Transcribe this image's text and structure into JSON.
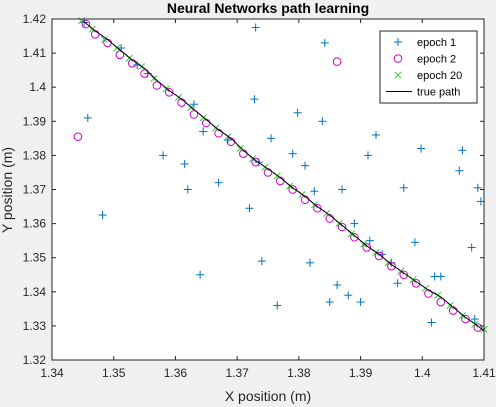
{
  "chart_data": {
    "type": "scatter",
    "title": "Neural Networks path learning",
    "xlabel": "X position (m)",
    "ylabel": "Y position (m)",
    "xlim": [
      1.34,
      1.41
    ],
    "ylim": [
      1.32,
      1.42
    ],
    "xticks": [
      "1.34",
      "1.35",
      "1.36",
      "1.37",
      "1.38",
      "1.39",
      "1.4",
      "1.41"
    ],
    "yticks": [
      "1.32",
      "1.33",
      "1.34",
      "1.35",
      "1.36",
      "1.37",
      "1.38",
      "1.39",
      "1.4",
      "1.41",
      "1.42"
    ],
    "xtick_values": [
      1.34,
      1.35,
      1.36,
      1.37,
      1.38,
      1.39,
      1.4,
      1.41
    ],
    "ytick_values": [
      1.32,
      1.33,
      1.34,
      1.35,
      1.36,
      1.37,
      1.38,
      1.39,
      1.4,
      1.41,
      1.42
    ],
    "legend_position": "top-right",
    "grid": false,
    "true_path": {
      "name": "true path",
      "color": "#000000",
      "x": [
        1.345,
        1.347,
        1.349,
        1.351,
        1.353,
        1.355,
        1.357,
        1.359,
        1.361,
        1.363,
        1.365,
        1.367,
        1.369,
        1.371,
        1.373,
        1.375,
        1.377,
        1.379,
        1.381,
        1.383,
        1.385,
        1.387,
        1.389,
        1.391,
        1.393,
        1.395,
        1.397,
        1.399,
        1.401,
        1.403,
        1.405,
        1.407,
        1.409,
        1.41
      ],
      "y": [
        1.4195,
        1.4165,
        1.414,
        1.411,
        1.408,
        1.4055,
        1.402,
        1.399,
        1.3965,
        1.3935,
        1.3905,
        1.3875,
        1.385,
        1.3815,
        1.3785,
        1.376,
        1.3735,
        1.3705,
        1.368,
        1.365,
        1.3625,
        1.3595,
        1.3565,
        1.3535,
        1.351,
        1.348,
        1.3455,
        1.343,
        1.3405,
        1.3385,
        1.3355,
        1.3325,
        1.33,
        1.3285
      ]
    },
    "series": [
      {
        "name": "epoch 1",
        "marker": "plus",
        "color": "#0072BD",
        "x": [
          1.3452,
          1.3458,
          1.3482,
          1.3512,
          1.3538,
          1.3555,
          1.358,
          1.3615,
          1.362,
          1.363,
          1.364,
          1.3645,
          1.367,
          1.3685,
          1.372,
          1.373,
          1.3728,
          1.3735,
          1.374,
          1.3755,
          1.3765,
          1.379,
          1.3798,
          1.381,
          1.3818,
          1.3825,
          1.3838,
          1.3842,
          1.385,
          1.3862,
          1.387,
          1.388,
          1.389,
          1.39,
          1.3912,
          1.3915,
          1.3925,
          1.3935,
          1.395,
          1.396,
          1.397,
          1.3988,
          1.3998,
          1.4015,
          1.402,
          1.403,
          1.406,
          1.4065,
          1.408,
          1.4085,
          1.409,
          1.4095
        ],
        "y": [
          1.419,
          1.391,
          1.3625,
          1.4115,
          1.4065,
          1.404,
          1.38,
          1.3775,
          1.37,
          1.395,
          1.345,
          1.387,
          1.372,
          1.3845,
          1.3645,
          1.4175,
          1.3965,
          1.378,
          1.349,
          1.385,
          1.336,
          1.3805,
          1.3925,
          1.377,
          1.3485,
          1.3695,
          1.39,
          1.413,
          1.337,
          1.342,
          1.37,
          1.339,
          1.36,
          1.337,
          1.38,
          1.355,
          1.386,
          1.351,
          1.3485,
          1.3425,
          1.3705,
          1.3545,
          1.382,
          1.331,
          1.3445,
          1.3445,
          1.3755,
          1.3815,
          1.353,
          1.332,
          1.3705,
          1.3665
        ]
      },
      {
        "name": "epoch 2",
        "marker": "circle",
        "color": "#cc00cc",
        "x": [
          1.3442,
          1.3455,
          1.347,
          1.349,
          1.351,
          1.353,
          1.355,
          1.357,
          1.359,
          1.361,
          1.363,
          1.365,
          1.367,
          1.369,
          1.371,
          1.373,
          1.375,
          1.377,
          1.379,
          1.381,
          1.383,
          1.385,
          1.3862,
          1.387,
          1.389,
          1.391,
          1.393,
          1.395,
          1.397,
          1.399,
          1.401,
          1.403,
          1.405,
          1.407,
          1.409
        ],
        "y": [
          1.3855,
          1.4185,
          1.4155,
          1.413,
          1.4095,
          1.407,
          1.404,
          1.4005,
          1.3985,
          1.3955,
          1.392,
          1.3895,
          1.3865,
          1.384,
          1.3805,
          1.378,
          1.375,
          1.3725,
          1.37,
          1.367,
          1.3645,
          1.3615,
          1.4075,
          1.359,
          1.356,
          1.353,
          1.3505,
          1.3475,
          1.345,
          1.3425,
          1.3395,
          1.337,
          1.3345,
          1.332,
          1.3295
        ]
      },
      {
        "name": "epoch 20",
        "marker": "x",
        "color": "#33cc33",
        "x": [
          1.3448,
          1.3465,
          1.3485,
          1.3505,
          1.3525,
          1.3545,
          1.3565,
          1.3585,
          1.3605,
          1.3625,
          1.3645,
          1.3665,
          1.3685,
          1.3705,
          1.3725,
          1.3745,
          1.3765,
          1.3785,
          1.3805,
          1.3825,
          1.3845,
          1.3865,
          1.3885,
          1.3905,
          1.3925,
          1.3945,
          1.3965,
          1.3985,
          1.4005,
          1.4025,
          1.4045,
          1.4065,
          1.4085,
          1.41
        ],
        "y": [
          1.4195,
          1.417,
          1.414,
          1.4115,
          1.4085,
          1.406,
          1.4025,
          1.3995,
          1.397,
          1.394,
          1.391,
          1.388,
          1.3855,
          1.382,
          1.379,
          1.3765,
          1.374,
          1.371,
          1.3685,
          1.3655,
          1.363,
          1.36,
          1.357,
          1.354,
          1.3515,
          1.3485,
          1.346,
          1.3435,
          1.341,
          1.339,
          1.336,
          1.333,
          1.3305,
          1.329
        ]
      }
    ]
  }
}
